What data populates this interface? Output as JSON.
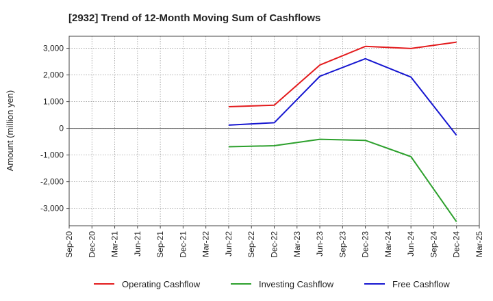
{
  "chart_data": {
    "type": "line",
    "title": "[2932]  Trend of 12-Month Moving Sum of Cashflows",
    "xlabel": "",
    "ylabel": "Amount (million yen)",
    "categories": [
      "Sep-20",
      "Dec-20",
      "Mar-21",
      "Jun-21",
      "Sep-21",
      "Dec-21",
      "Mar-22",
      "Jun-22",
      "Sep-22",
      "Dec-22",
      "Mar-23",
      "Jun-23",
      "Sep-23",
      "Dec-23",
      "Mar-24",
      "Jun-24",
      "Sep-24",
      "Dec-24",
      "Mar-25"
    ],
    "yticks": [
      -3000,
      -2000,
      -1000,
      0,
      1000,
      2000,
      3000
    ],
    "ytick_labels": [
      "-3,000",
      "-2,000",
      "-1,000",
      "0",
      "1,000",
      "2,000",
      "3,000"
    ],
    "ylim": [
      -3650,
      3450
    ],
    "grid": true,
    "legend_position": "bottom",
    "series": [
      {
        "name": "Operating Cashflow",
        "color": "#e31a1c",
        "points": [
          [
            "Jun-22",
            810
          ],
          [
            "Dec-22",
            870
          ],
          [
            "Jun-23",
            2370
          ],
          [
            "Dec-23",
            3070
          ],
          [
            "Jun-24",
            2990
          ],
          [
            "Dec-24",
            3230
          ]
        ]
      },
      {
        "name": "Investing Cashflow",
        "color": "#2ca02c",
        "points": [
          [
            "Jun-22",
            -690
          ],
          [
            "Dec-22",
            -650
          ],
          [
            "Jun-23",
            -410
          ],
          [
            "Dec-23",
            -450
          ],
          [
            "Jun-24",
            -1060
          ],
          [
            "Dec-24",
            -3500
          ]
        ]
      },
      {
        "name": "Free Cashflow",
        "color": "#1515d0",
        "points": [
          [
            "Jun-22",
            120
          ],
          [
            "Dec-22",
            210
          ],
          [
            "Jun-23",
            1950
          ],
          [
            "Dec-23",
            2610
          ],
          [
            "Jun-24",
            1920
          ],
          [
            "Dec-24",
            -260
          ]
        ]
      }
    ]
  }
}
